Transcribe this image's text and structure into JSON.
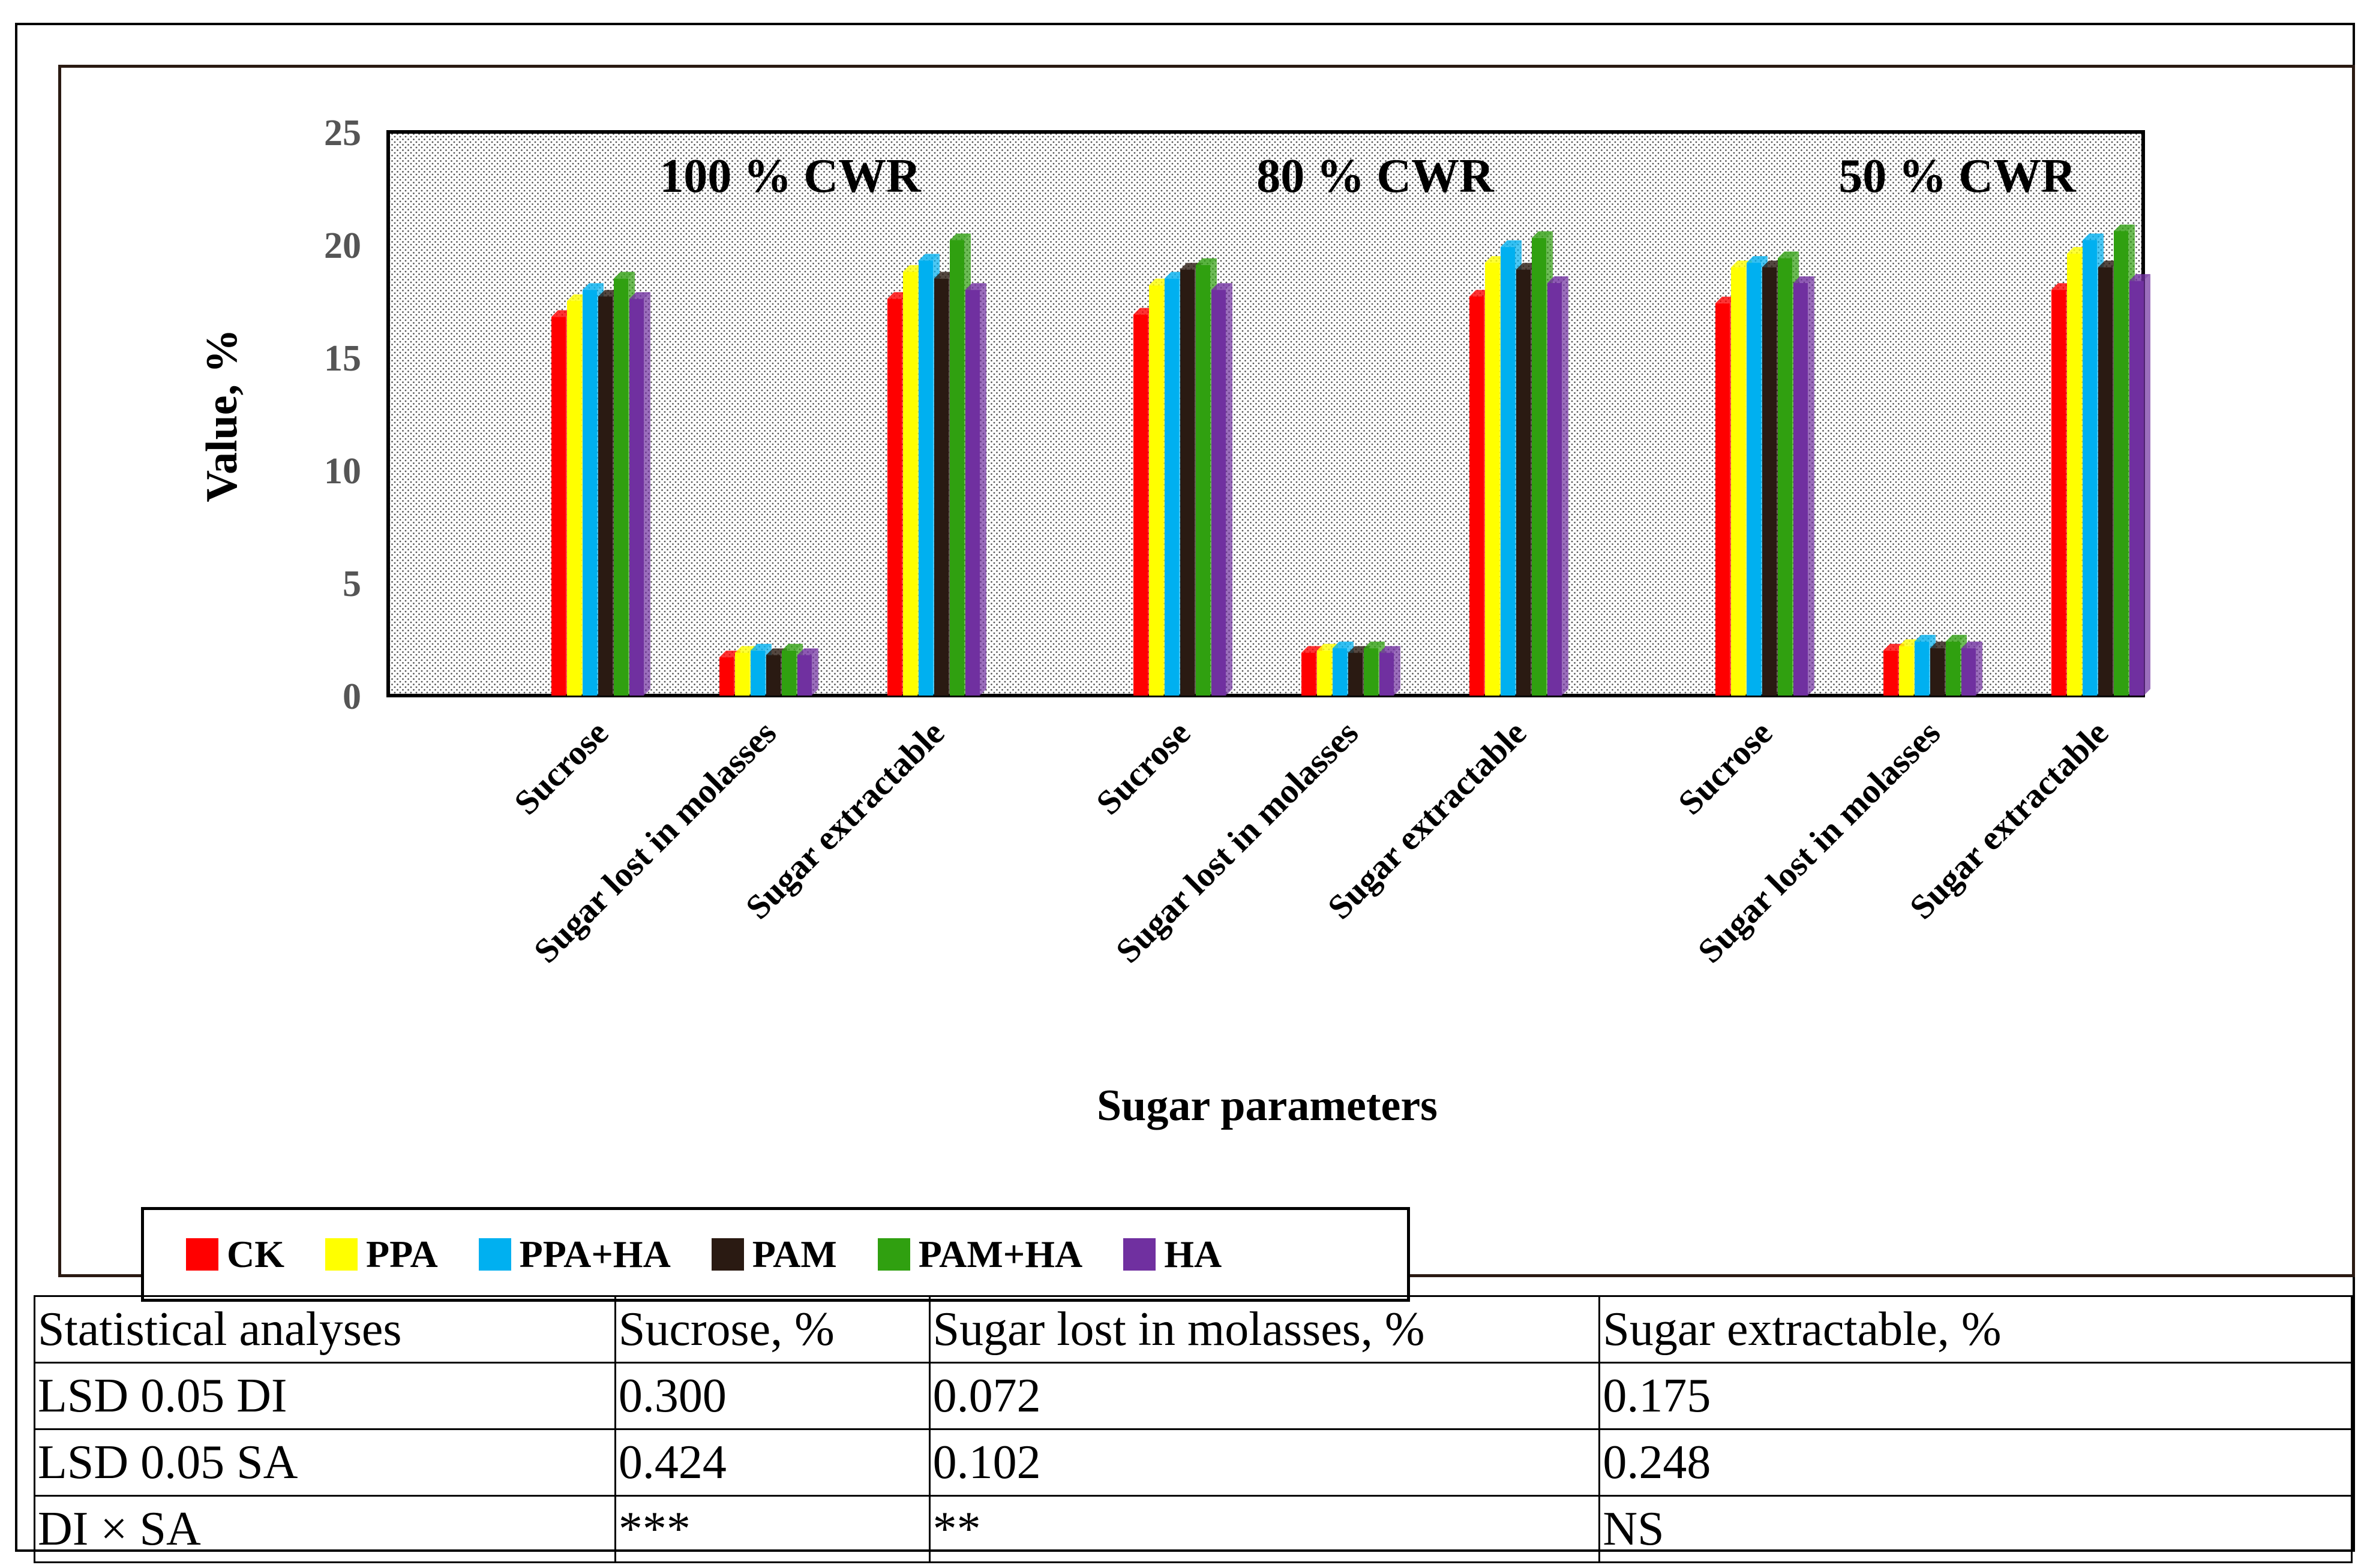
{
  "chart_data": {
    "type": "bar",
    "title": "",
    "xlabel": "Sugar parameters",
    "ylabel": "Value, %",
    "ylim": [
      0,
      25
    ],
    "yticks": [
      0,
      5,
      10,
      15,
      20,
      25
    ],
    "groups": [
      {
        "label": "100 % CWR",
        "categories": [
          "Sucrose",
          "Sugar lost in molasses",
          "Sugar extractable"
        ]
      },
      {
        "label": "80 % CWR",
        "categories": [
          "Sucrose",
          "Sugar lost in molasses",
          "Sugar extractable"
        ]
      },
      {
        "label": "50 % CWR",
        "categories": [
          "Sucrose",
          "Sugar lost in molasses",
          "Sugar extractable"
        ]
      }
    ],
    "series": [
      {
        "name": "CK",
        "color": "#ff0000",
        "values": [
          16.8,
          1.7,
          17.6,
          16.9,
          1.9,
          17.7,
          17.4,
          2.0,
          18.0
        ]
      },
      {
        "name": "PPA",
        "color": "#ffff00",
        "values": [
          17.5,
          1.9,
          18.8,
          18.2,
          2.0,
          19.2,
          19.0,
          2.2,
          19.6
        ]
      },
      {
        "name": "PPA+HA",
        "color": "#00b0f0",
        "values": [
          18.0,
          2.0,
          19.3,
          18.5,
          2.1,
          19.9,
          19.2,
          2.4,
          20.2
        ]
      },
      {
        "name": "PAM",
        "color": "#2a1a12",
        "values": [
          17.7,
          1.8,
          18.5,
          18.9,
          1.9,
          18.9,
          19.0,
          2.1,
          19.0
        ]
      },
      {
        "name": "PAM+HA",
        "color": "#30a010",
        "values": [
          18.5,
          2.0,
          20.2,
          19.1,
          2.1,
          20.3,
          19.4,
          2.4,
          20.6
        ]
      },
      {
        "name": "HA",
        "color": "#7030a0",
        "values": [
          17.6,
          1.8,
          18.0,
          18.0,
          1.9,
          18.3,
          18.3,
          2.1,
          18.4
        ]
      }
    ]
  },
  "stats_table": {
    "header": [
      "Statistical analyses",
      "Sucrose, %",
      "Sugar lost in molasses, %",
      "Sugar extractable, %"
    ],
    "rows": [
      [
        "LSD 0.05 DI",
        "0.300",
        "0.072",
        "0.175"
      ],
      [
        "LSD 0.05 SA",
        "0.424",
        "0.102",
        "0.248"
      ],
      [
        "DI × SA",
        "***",
        "**",
        "NS"
      ]
    ]
  }
}
